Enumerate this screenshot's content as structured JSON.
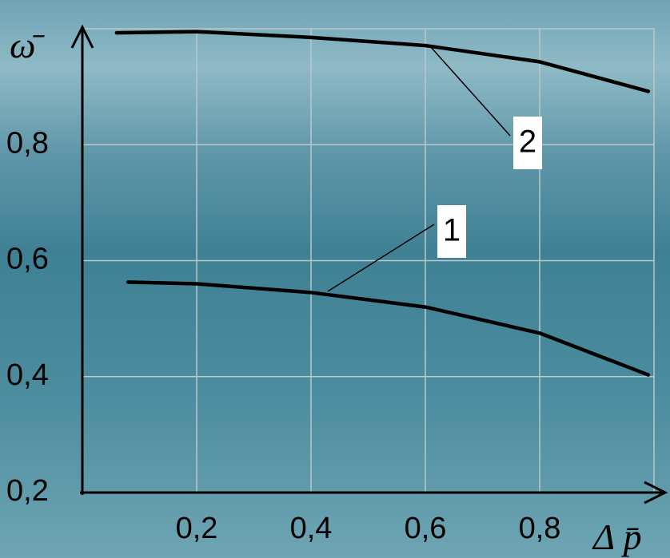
{
  "chart_data": {
    "type": "line",
    "y_label": "ω̄",
    "x_label": "Δ p̄",
    "xlim": [
      0,
      1.0
    ],
    "ylim": [
      0.2,
      1.0
    ],
    "xticks": [
      {
        "value": 0.2,
        "label": "0,2"
      },
      {
        "value": 0.4,
        "label": "0,4"
      },
      {
        "value": 0.6,
        "label": "0,6"
      },
      {
        "value": 0.8,
        "label": "0,8"
      }
    ],
    "yticks": [
      {
        "value": 0.2,
        "label": "0,2"
      },
      {
        "value": 0.4,
        "label": "0,4"
      },
      {
        "value": 0.6,
        "label": "0,6"
      },
      {
        "value": 0.8,
        "label": "0,8"
      }
    ],
    "grid": true,
    "series": [
      {
        "name": "1",
        "color": "#000000",
        "x": [
          0.08,
          0.2,
          0.4,
          0.6,
          0.8,
          0.99
        ],
        "values": [
          0.563,
          0.56,
          0.545,
          0.52,
          0.475,
          0.403
        ]
      },
      {
        "name": "2",
        "color": "#000000",
        "x": [
          0.06,
          0.2,
          0.4,
          0.6,
          0.8,
          0.99
        ],
        "values": [
          0.993,
          0.995,
          0.985,
          0.971,
          0.943,
          0.892
        ]
      }
    ]
  }
}
